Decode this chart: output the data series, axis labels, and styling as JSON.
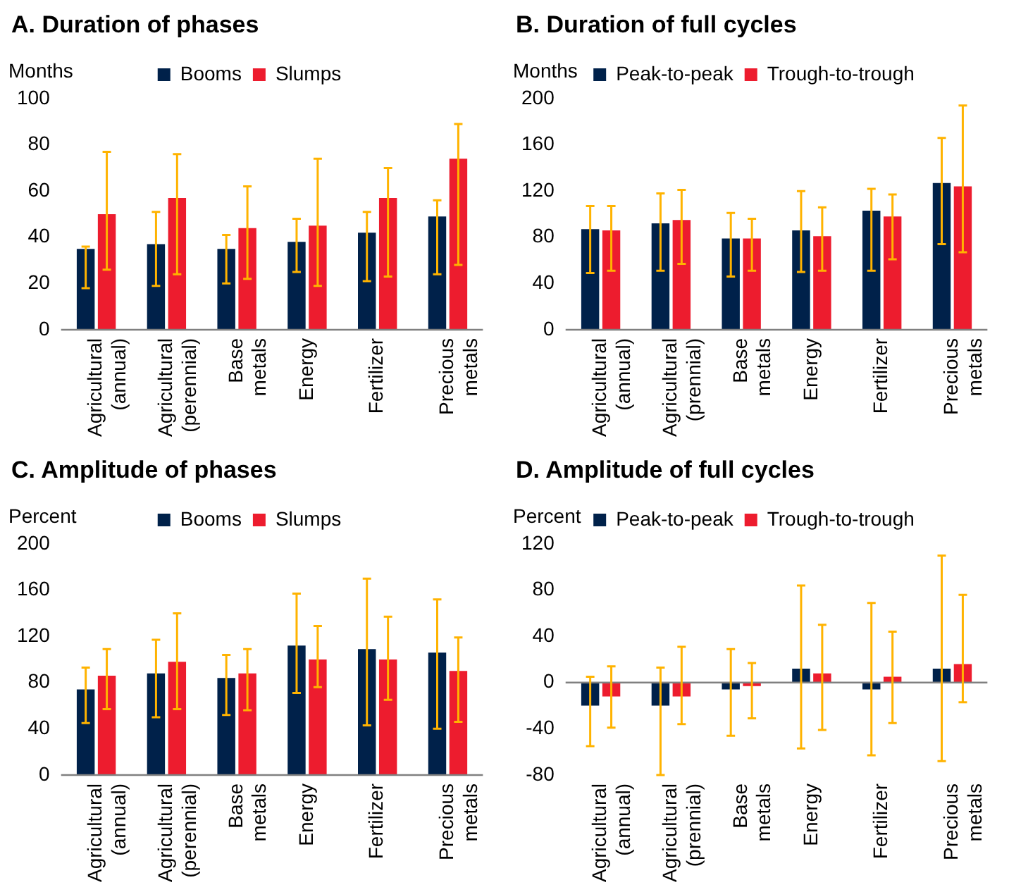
{
  "chart_data": [
    {
      "type": "bar",
      "title": "A. Duration of phases",
      "ylabel": "Months",
      "categories": [
        "Agricultural (annual)",
        "Agricultural (perennial)",
        "Base metals",
        "Energy",
        "Fertilizer",
        "Precious metals"
      ],
      "ylim": [
        0,
        100
      ],
      "yticks": [
        0,
        20,
        40,
        60,
        80,
        100
      ],
      "grid": false,
      "legend": "top",
      "series": [
        {
          "name": "Booms",
          "color": "#00214a",
          "values": [
            35,
            37,
            35,
            38,
            42,
            49
          ],
          "errors": [
            [
              18,
              36
            ],
            [
              19,
              51
            ],
            [
              20,
              41
            ],
            [
              25,
              48
            ],
            [
              21,
              51
            ],
            [
              24,
              56
            ]
          ]
        },
        {
          "name": "Slumps",
          "color": "#ed1c2e",
          "values": [
            50,
            57,
            44,
            45,
            57,
            74
          ],
          "errors": [
            [
              26,
              77
            ],
            [
              24,
              76
            ],
            [
              22,
              62
            ],
            [
              19,
              74
            ],
            [
              23,
              70
            ],
            [
              28,
              89
            ]
          ]
        }
      ]
    },
    {
      "type": "bar",
      "title": "B. Duration of full cycles",
      "ylabel": "Months",
      "categories": [
        "Agricultural (annual)",
        "Agricultural (prennial)",
        "Base metals",
        "Energy",
        "Fertilizer",
        "Precious metals"
      ],
      "ylim": [
        0,
        200
      ],
      "yticks": [
        0,
        40,
        80,
        120,
        160,
        200
      ],
      "grid": false,
      "legend": "top",
      "series": [
        {
          "name": "Peak-to-peak",
          "color": "#00214a",
          "values": [
            87,
            92,
            79,
            86,
            103,
            127
          ],
          "errors": [
            [
              49,
              107
            ],
            [
              51,
              118
            ],
            [
              46,
              101
            ],
            [
              50,
              120
            ],
            [
              51,
              122
            ],
            [
              74,
              166
            ]
          ]
        },
        {
          "name": "Trough-to-trough",
          "color": "#ed1c2e",
          "values": [
            86,
            95,
            79,
            81,
            98,
            124
          ],
          "errors": [
            [
              51,
              107
            ],
            [
              57,
              121
            ],
            [
              51,
              96
            ],
            [
              51,
              106
            ],
            [
              61,
              117
            ],
            [
              67,
              194
            ]
          ]
        }
      ]
    },
    {
      "type": "bar",
      "title": "C. Amplitude of phases",
      "ylabel": "Percent",
      "categories": [
        "Agricultural (annual)",
        "Agricultural (perennial)",
        "Base metals",
        "Energy",
        "Fertilizer",
        "Precious metals"
      ],
      "ylim": [
        0,
        200
      ],
      "yticks": [
        0,
        40,
        80,
        120,
        160,
        200
      ],
      "grid": false,
      "legend": "top",
      "series": [
        {
          "name": "Booms",
          "color": "#00214a",
          "values": [
            74,
            88,
            84,
            112,
            109,
            106
          ],
          "errors": [
            [
              45,
              93
            ],
            [
              50,
              117
            ],
            [
              52,
              104
            ],
            [
              71,
              157
            ],
            [
              43,
              170
            ],
            [
              40,
              152
            ]
          ]
        },
        {
          "name": "Slumps",
          "color": "#ed1c2e",
          "values": [
            86,
            98,
            88,
            100,
            100,
            90
          ],
          "errors": [
            [
              57,
              109
            ],
            [
              57,
              140
            ],
            [
              56,
              109
            ],
            [
              76,
              129
            ],
            [
              65,
              137
            ],
            [
              46,
              119
            ]
          ]
        }
      ]
    },
    {
      "type": "bar",
      "title": "D. Amplitude of full cycles",
      "ylabel": "Percent",
      "categories": [
        "Agricultural (annual)",
        "Agricultural (prennial)",
        "Base metals",
        "Energy",
        "Fertilizer",
        "Precious metals"
      ],
      "ylim": [
        -80,
        120
      ],
      "yticks": [
        -80,
        -40,
        0,
        40,
        80,
        120
      ],
      "grid": false,
      "ref_lines": [
        {
          "axis": "y",
          "value": 0,
          "color": "#808080"
        }
      ],
      "legend": "top",
      "series": [
        {
          "name": "Peak-to-peak",
          "color": "#00214a",
          "values": [
            -20,
            -20,
            -6,
            12,
            -6,
            12
          ],
          "errors": [
            [
              -55,
              5
            ],
            [
              -80,
              13
            ],
            [
              -46,
              29
            ],
            [
              -57,
              84
            ],
            [
              -63,
              69
            ],
            [
              -68,
              110
            ]
          ]
        },
        {
          "name": "Trough-to-trough",
          "color": "#ed1c2e",
          "values": [
            -12,
            -12,
            -3,
            8,
            5,
            16
          ],
          "errors": [
            [
              -39,
              14
            ],
            [
              -36,
              31
            ],
            [
              -31,
              17
            ],
            [
              -41,
              50
            ],
            [
              -35,
              44
            ],
            [
              -17,
              76
            ]
          ]
        }
      ]
    }
  ]
}
